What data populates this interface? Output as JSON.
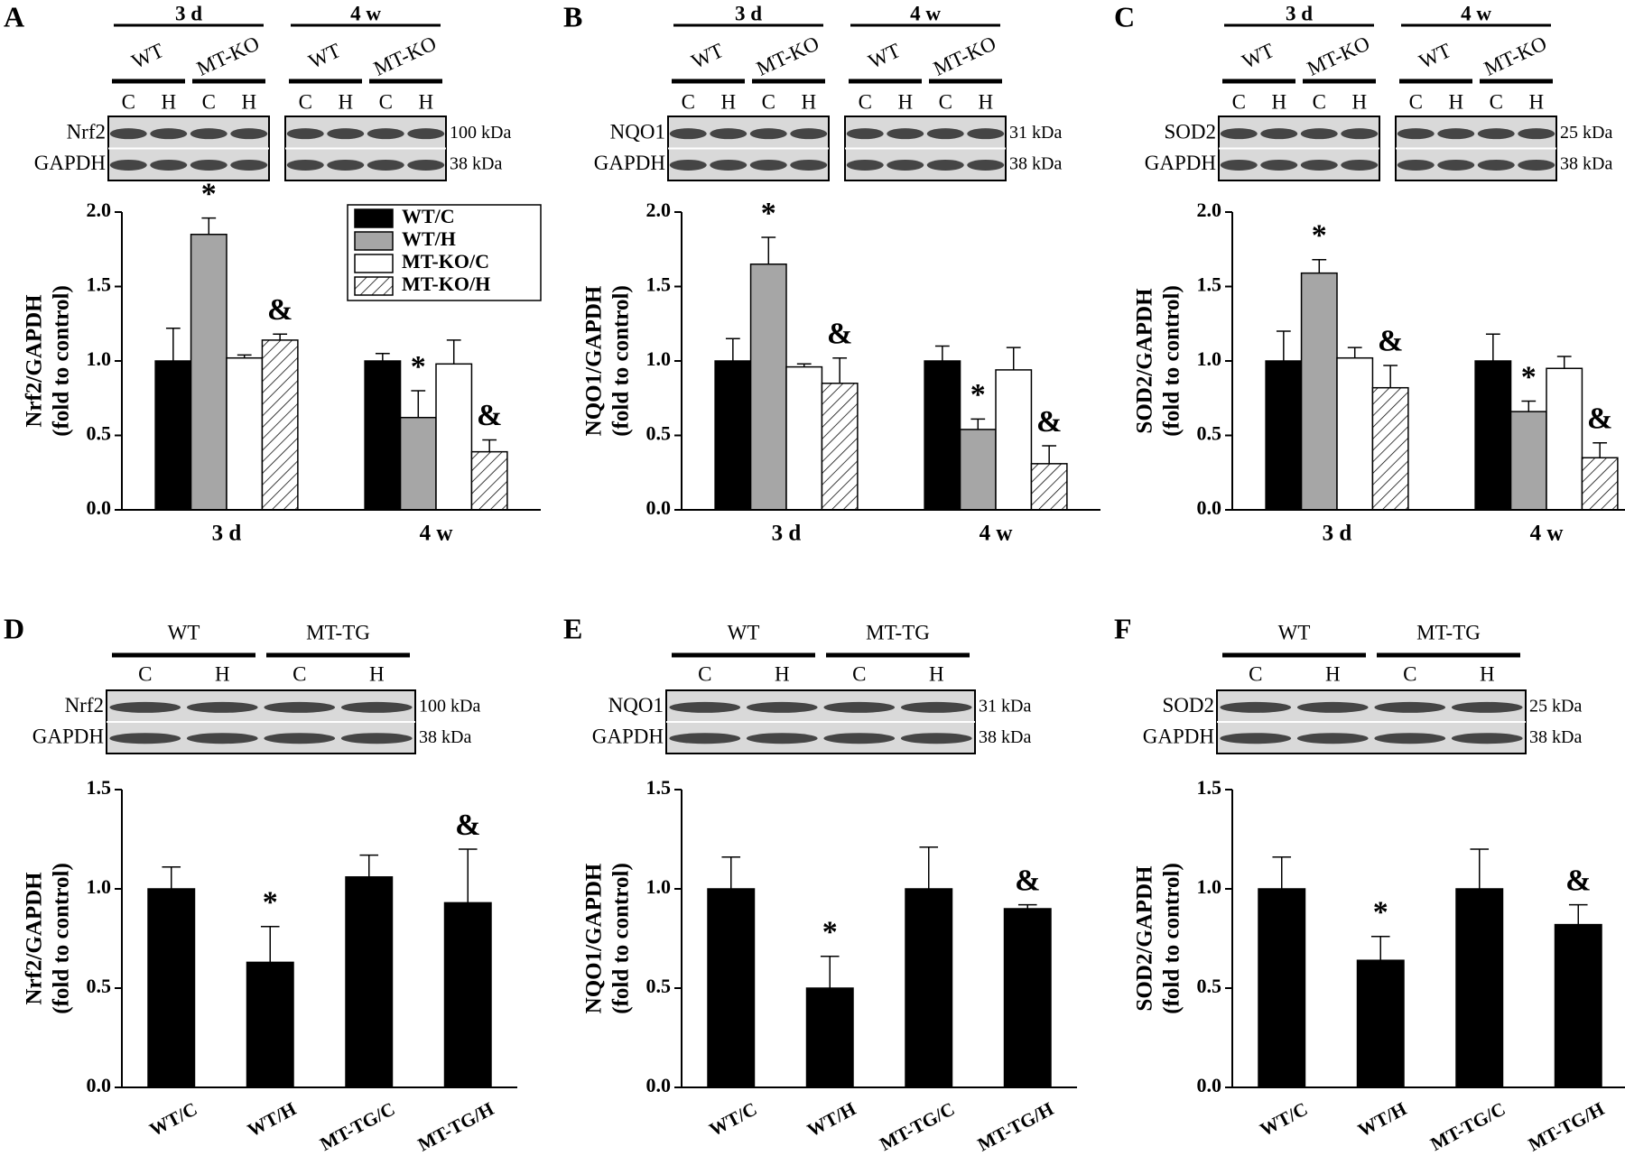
{
  "chart_data": [
    {
      "type": "bar",
      "panel": "A",
      "blot": {
        "groups": [
          "3 d",
          "4 w"
        ],
        "subgroups": [
          "WT",
          "MT-KO",
          "WT",
          "MT-KO"
        ],
        "lanes": [
          "C",
          "H",
          "C",
          "H",
          "C",
          "H",
          "C",
          "H"
        ],
        "proteins": [
          "Nrf2",
          "GAPDH"
        ],
        "sizes": [
          "100 kDa",
          "38 kDa"
        ]
      },
      "ylabel": [
        "Nrf2/GAPDH",
        "(fold to control)"
      ],
      "categories": [
        "3 d",
        "4 w"
      ],
      "ylim": [
        0,
        2.0
      ],
      "yticks": [
        {
          "value": 0,
          "label": "0.0"
        },
        {
          "value": 0.5,
          "label": "0.5"
        },
        {
          "value": 1,
          "label": "1.0"
        },
        {
          "value": 1.5,
          "label": "1.5"
        },
        {
          "value": 2,
          "label": "2.0"
        }
      ],
      "legend": "upper right",
      "series": [
        {
          "name": "WT/C",
          "color": "#000000",
          "values": [
            1.0,
            1.0
          ],
          "errors": [
            0.22,
            0.05
          ]
        },
        {
          "name": "WT/H",
          "color": "#a6a6a6",
          "values": [
            1.85,
            0.62
          ],
          "errors": [
            0.11,
            0.18
          ],
          "annotations": [
            "*",
            "*"
          ]
        },
        {
          "name": "MT-KO/C",
          "color": "#ffffff",
          "values": [
            1.02,
            0.98
          ],
          "errors": [
            0.02,
            0.16
          ]
        },
        {
          "name": "MT-KO/H",
          "color": "#ffffff",
          "pattern": "hatch",
          "values": [
            1.14,
            0.39
          ],
          "errors": [
            0.04,
            0.08
          ],
          "annotations": [
            "&",
            "&"
          ]
        }
      ]
    },
    {
      "type": "bar",
      "panel": "B",
      "blot": {
        "groups": [
          "3 d",
          "4 w"
        ],
        "subgroups": [
          "WT",
          "MT-KO",
          "WT",
          "MT-KO"
        ],
        "lanes": [
          "C",
          "H",
          "C",
          "H",
          "C",
          "H",
          "C",
          "H"
        ],
        "proteins": [
          "NQO1",
          "GAPDH"
        ],
        "sizes": [
          "31 kDa",
          "38 kDa"
        ]
      },
      "ylabel": [
        "NQO1/GAPDH",
        "(fold to control)"
      ],
      "categories": [
        "3 d",
        "4 w"
      ],
      "ylim": [
        0,
        2.0
      ],
      "yticks": [
        {
          "value": 0,
          "label": "0.0"
        },
        {
          "value": 0.5,
          "label": "0.5"
        },
        {
          "value": 1,
          "label": "1.0"
        },
        {
          "value": 1.5,
          "label": "1.5"
        },
        {
          "value": 2,
          "label": "2.0"
        }
      ],
      "series": [
        {
          "color": "#000000",
          "values": [
            1.0,
            1.0
          ],
          "errors": [
            0.15,
            0.1
          ]
        },
        {
          "color": "#a6a6a6",
          "values": [
            1.65,
            0.54
          ],
          "errors": [
            0.18,
            0.07
          ],
          "annotations": [
            "*",
            "*"
          ]
        },
        {
          "color": "#ffffff",
          "values": [
            0.96,
            0.94
          ],
          "errors": [
            0.02,
            0.15
          ]
        },
        {
          "color": "#ffffff",
          "pattern": "hatch",
          "values": [
            0.85,
            0.31
          ],
          "errors": [
            0.17,
            0.12
          ],
          "annotations": [
            "&",
            "&"
          ]
        }
      ]
    },
    {
      "type": "bar",
      "panel": "C",
      "blot": {
        "groups": [
          "3 d",
          "4 w"
        ],
        "subgroups": [
          "WT",
          "MT-KO",
          "WT",
          "MT-KO"
        ],
        "lanes": [
          "C",
          "H",
          "C",
          "H",
          "C",
          "H",
          "C",
          "H"
        ],
        "proteins": [
          "SOD2",
          "GAPDH"
        ],
        "sizes": [
          "25 kDa",
          "38 kDa"
        ]
      },
      "ylabel": [
        "SOD2/GAPDH",
        "(fold to control)"
      ],
      "categories": [
        "3 d",
        "4 w"
      ],
      "ylim": [
        0,
        2.0
      ],
      "yticks": [
        {
          "value": 0,
          "label": "0.0"
        },
        {
          "value": 0.5,
          "label": "0.5"
        },
        {
          "value": 1,
          "label": "1.0"
        },
        {
          "value": 1.5,
          "label": "1.5"
        },
        {
          "value": 2,
          "label": "2.0"
        }
      ],
      "series": [
        {
          "color": "#000000",
          "values": [
            1.0,
            1.0
          ],
          "errors": [
            0.2,
            0.18
          ]
        },
        {
          "color": "#a6a6a6",
          "values": [
            1.59,
            0.66
          ],
          "errors": [
            0.09,
            0.07
          ],
          "annotations": [
            "*",
            "*"
          ]
        },
        {
          "color": "#ffffff",
          "values": [
            1.02,
            0.95
          ],
          "errors": [
            0.07,
            0.08
          ]
        },
        {
          "color": "#ffffff",
          "pattern": "hatch",
          "values": [
            0.82,
            0.35
          ],
          "errors": [
            0.15,
            0.1
          ],
          "annotations": [
            "&",
            "&"
          ]
        }
      ]
    },
    {
      "type": "bar",
      "panel": "D",
      "blot": {
        "groups": [
          "WT",
          "MT-TG"
        ],
        "lanes": [
          "C",
          "H",
          "C",
          "H"
        ],
        "proteins": [
          "Nrf2",
          "GAPDH"
        ],
        "sizes": [
          "100 kDa",
          "38 kDa"
        ]
      },
      "ylabel": [
        "Nrf2/GAPDH",
        "(fold to control)"
      ],
      "categories": [
        "WT/C",
        "WT/H",
        "MT-TG/C",
        "MT-TG/H"
      ],
      "ylim": [
        0,
        1.5
      ],
      "yticks": [
        {
          "value": 0,
          "label": "0.0"
        },
        {
          "value": 0.5,
          "label": "0.5"
        },
        {
          "value": 1,
          "label": "1.0"
        },
        {
          "value": 1.5,
          "label": "1.5"
        }
      ],
      "series": [
        {
          "color": "#000000",
          "values": [
            1.0,
            0.63,
            1.06,
            0.93
          ],
          "errors": [
            0.11,
            0.18,
            0.11,
            0.27
          ],
          "annotations": [
            null,
            "*",
            null,
            "&"
          ]
        }
      ]
    },
    {
      "type": "bar",
      "panel": "E",
      "blot": {
        "groups": [
          "WT",
          "MT-TG"
        ],
        "lanes": [
          "C",
          "H",
          "C",
          "H"
        ],
        "proteins": [
          "NQO1",
          "GAPDH"
        ],
        "sizes": [
          "31 kDa",
          "38 kDa"
        ]
      },
      "ylabel": [
        "NQO1/GAPDH",
        "(fold to control)"
      ],
      "categories": [
        "WT/C",
        "WT/H",
        "MT-TG/C",
        "MT-TG/H"
      ],
      "ylim": [
        0,
        1.5
      ],
      "yticks": [
        {
          "value": 0,
          "label": "0.0"
        },
        {
          "value": 0.5,
          "label": "0.5"
        },
        {
          "value": 1,
          "label": "1.0"
        },
        {
          "value": 1.5,
          "label": "1.5"
        }
      ],
      "series": [
        {
          "color": "#000000",
          "values": [
            1.0,
            0.5,
            1.0,
            0.9
          ],
          "errors": [
            0.16,
            0.16,
            0.21,
            0.02
          ],
          "annotations": [
            null,
            "*",
            null,
            "&"
          ]
        }
      ]
    },
    {
      "type": "bar",
      "panel": "F",
      "blot": {
        "groups": [
          "WT",
          "MT-TG"
        ],
        "lanes": [
          "C",
          "H",
          "C",
          "H"
        ],
        "proteins": [
          "SOD2",
          "GAPDH"
        ],
        "sizes": [
          "25 kDa",
          "38 kDa"
        ]
      },
      "ylabel": [
        "SOD2/GAPDH",
        "(fold to control)"
      ],
      "categories": [
        "WT/C",
        "WT/H",
        "MT-TG/C",
        "MT-TG/H"
      ],
      "ylim": [
        0,
        1.5
      ],
      "yticks": [
        {
          "value": 0,
          "label": "0.0"
        },
        {
          "value": 0.5,
          "label": "0.5"
        },
        {
          "value": 1,
          "label": "1.0"
        },
        {
          "value": 1.5,
          "label": "1.5"
        }
      ],
      "series": [
        {
          "color": "#000000",
          "values": [
            1.0,
            0.64,
            1.0,
            0.82
          ],
          "errors": [
            0.16,
            0.12,
            0.2,
            0.1
          ],
          "annotations": [
            null,
            "*",
            null,
            "&"
          ]
        }
      ]
    }
  ]
}
